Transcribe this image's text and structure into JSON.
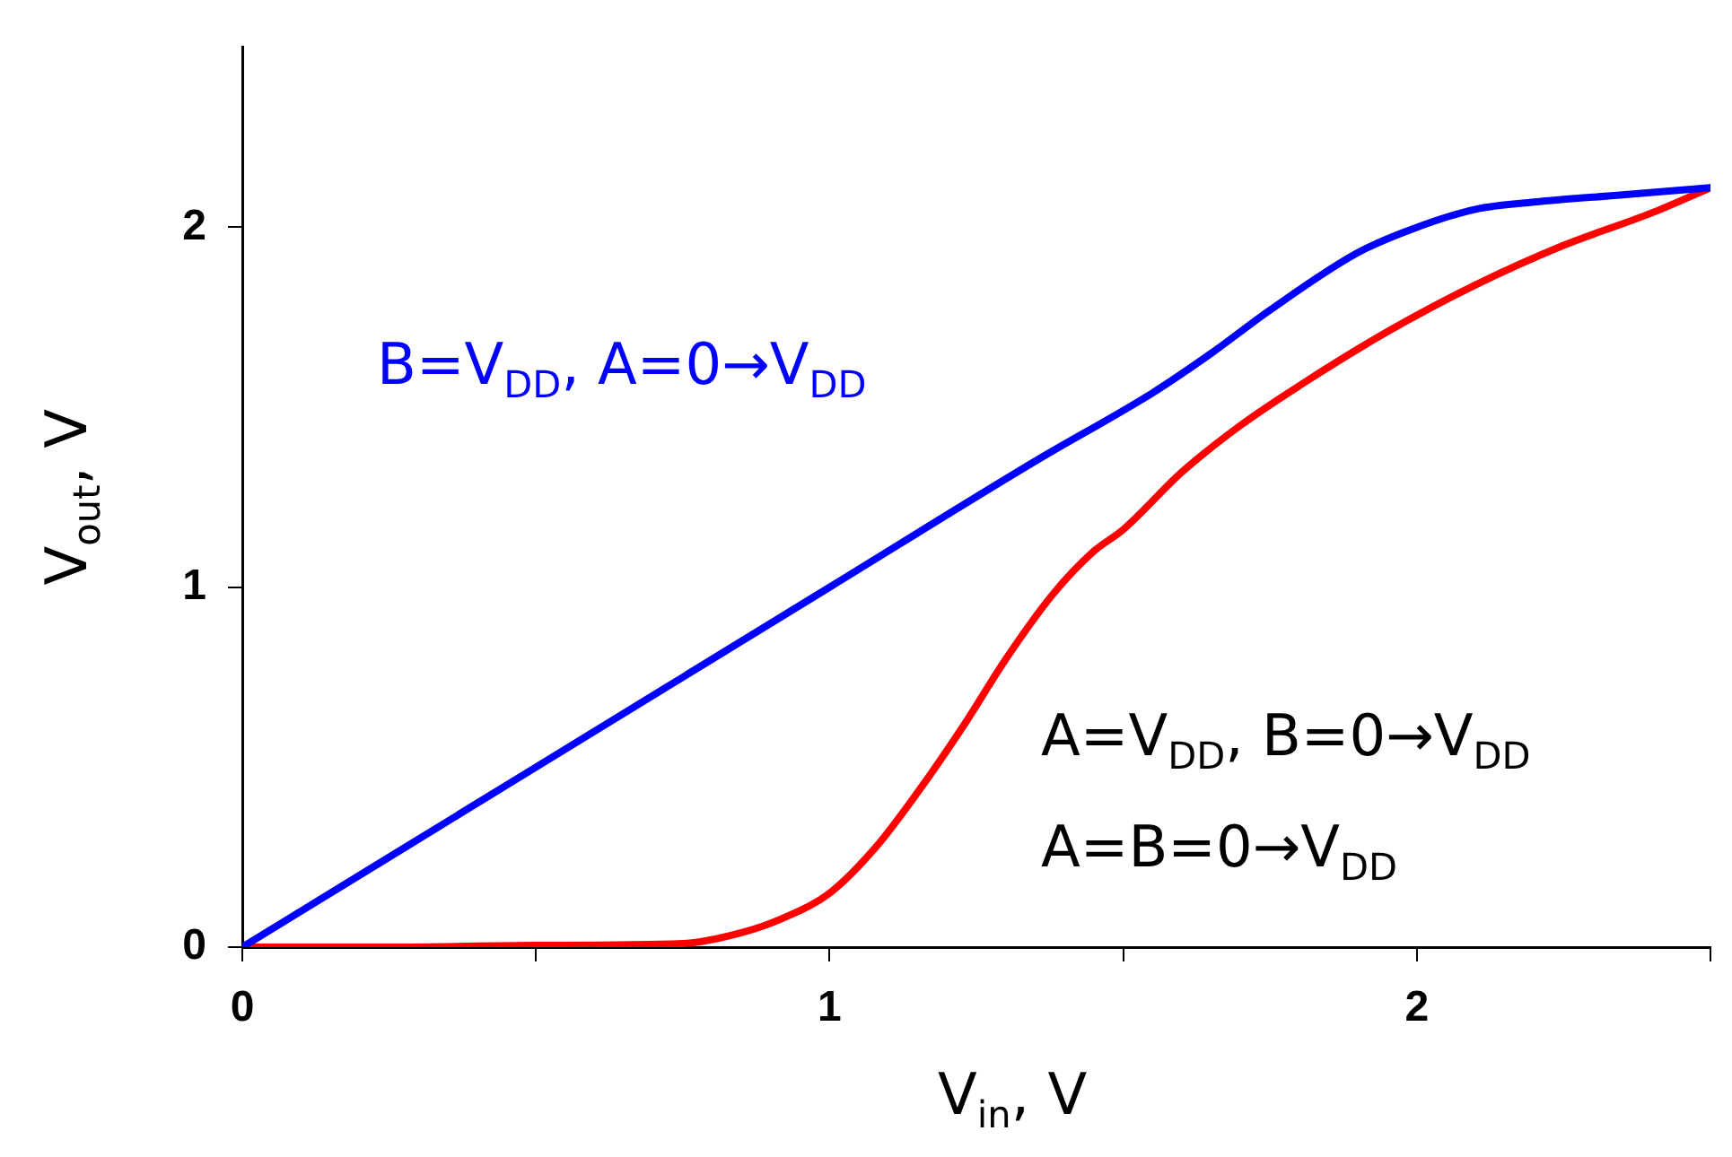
{
  "chart_data": {
    "type": "line",
    "xlabel": "V$_{in}$, V",
    "ylabel": "V$_{out}$, V",
    "xlim": [
      0,
      2.5
    ],
    "ylim": [
      0,
      2.5
    ],
    "xticks": [
      0,
      {
        "value": 0.5,
        "label": null
      },
      1,
      {
        "value": 1.5,
        "label": null
      },
      2,
      {
        "value": 2.5,
        "label": null
      }
    ],
    "yticks": [
      0,
      1,
      2
    ],
    "grid": false,
    "legend": false,
    "line_style": "solid",
    "annotations": [
      "A=V$_{DD}$, B=0→V$_{DD}$",
      "A=B=0→V$_{DD}$"
    ],
    "series": [
      {
        "name": "B=V$_{DD}$, A=0→V$_{DD}$",
        "color": "#0000ff",
        "x": [
          0,
          0.5,
          1,
          1.35,
          1.55,
          1.65,
          1.75,
          1.9,
          2,
          2.1,
          2.2,
          2.35,
          2.5
        ],
        "values": [
          0,
          0.5,
          1,
          1.35,
          1.54,
          1.65,
          1.77,
          1.93,
          2,
          2.05,
          2.07,
          2.09,
          2.11
        ]
      },
      {
        "color": "#ff0000",
        "x": [
          0,
          0.25,
          0.5,
          0.75,
          0.85,
          0.92,
          1,
          1.08,
          1.15,
          1.23,
          1.3,
          1.38,
          1.45,
          1.5,
          1.6,
          1.7,
          1.8,
          1.95,
          2.1,
          2.25,
          2.4,
          2.5
        ],
        "values": [
          0,
          0,
          0.005,
          0.01,
          0.04,
          0.08,
          0.15,
          0.28,
          0.43,
          0.62,
          0.8,
          0.98,
          1.1,
          1.16,
          1.32,
          1.45,
          1.56,
          1.71,
          1.84,
          1.95,
          2.04,
          2.11
        ]
      }
    ]
  }
}
